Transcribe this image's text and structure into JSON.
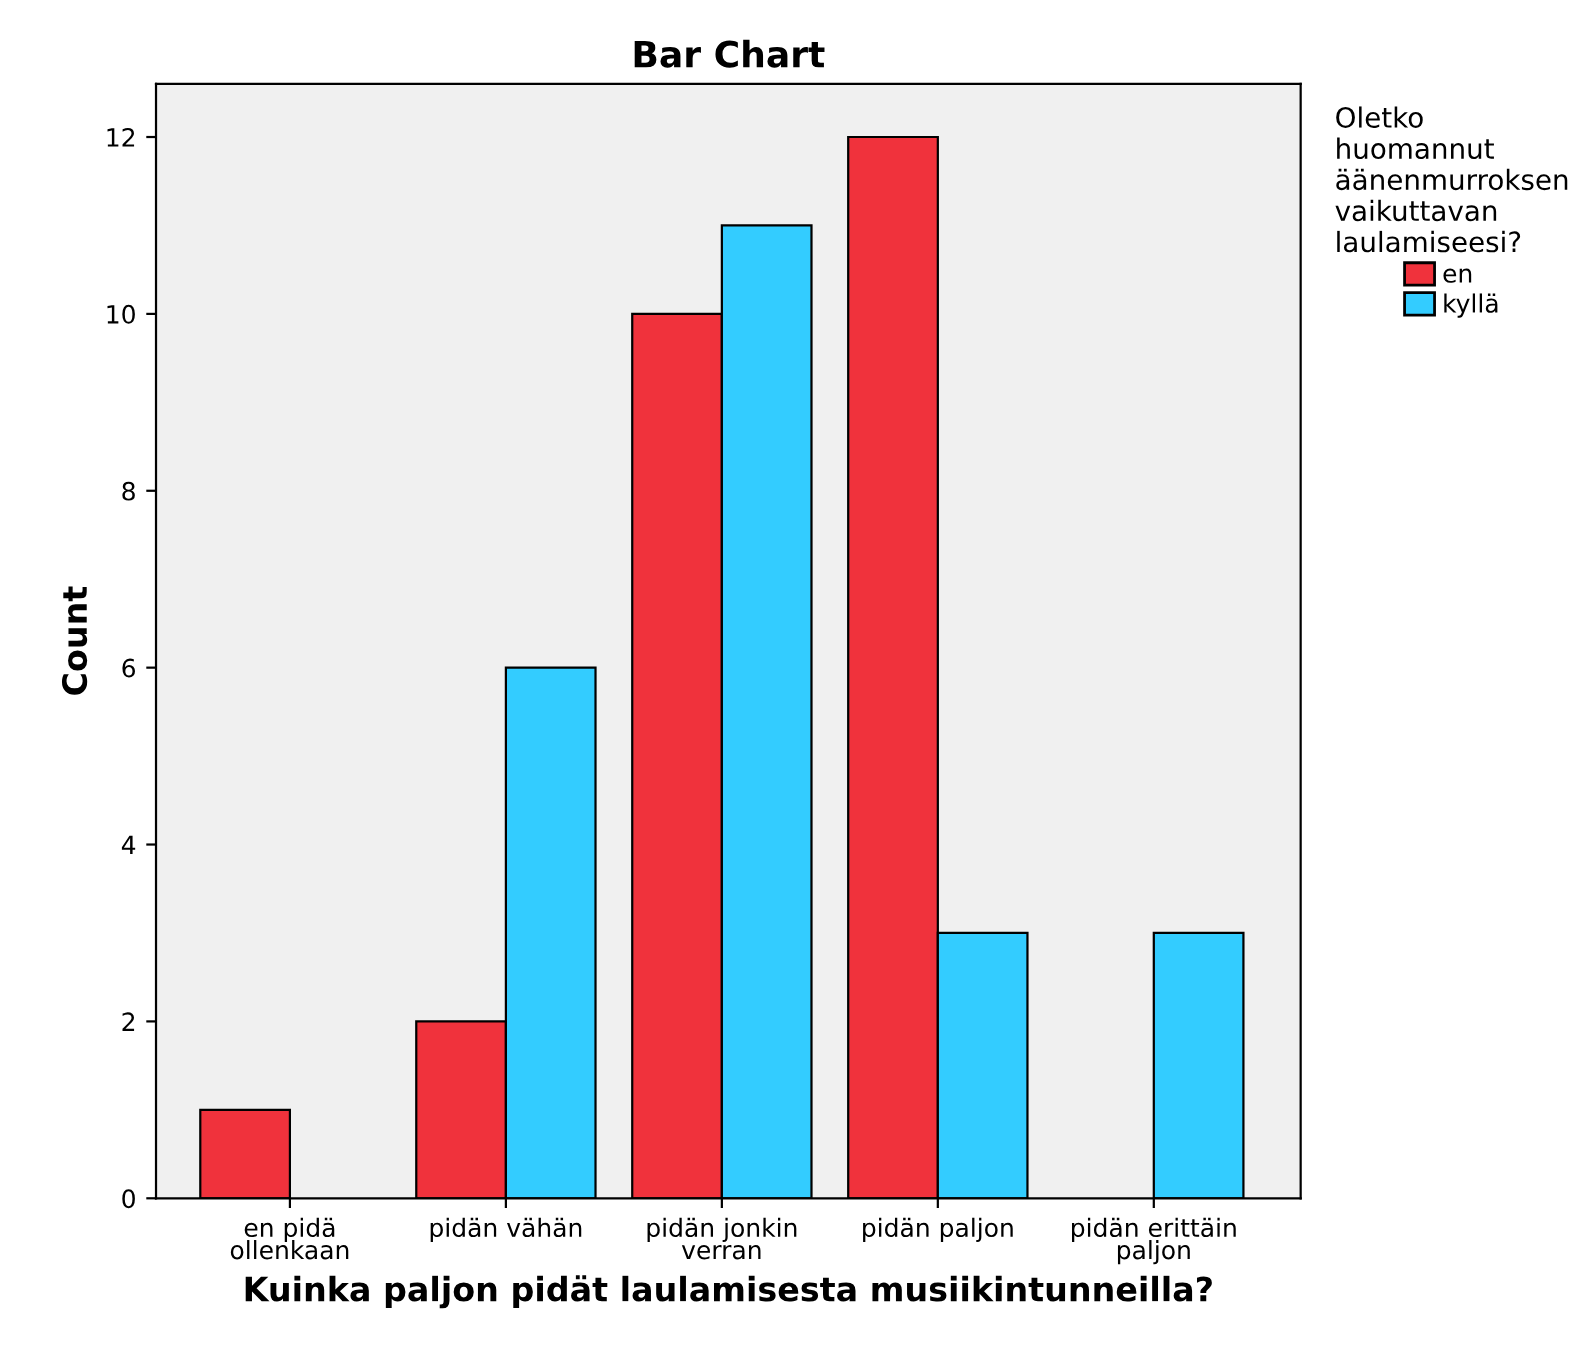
{
  "chart_data": {
    "type": "bar",
    "title": "Bar Chart",
    "xlabel": "Kuinka paljon pidät laulamisesta musiikintunneilla?",
    "ylabel": "Count",
    "legend_title": "Oletko\nhuomannut\näänenmurroksen\nvaikuttavan\nlaulamiseesi?",
    "categories": [
      "en pidä\nollenkaan",
      "pidän vähän",
      "pidän jonkin\nverran",
      "pidän paljon",
      "pidän erittäin\npaljon"
    ],
    "series": [
      {
        "name": "en",
        "color": "#f0323c",
        "values": [
          1,
          2,
          10,
          12,
          null
        ]
      },
      {
        "name": "kyllä",
        "color": "#33ccff",
        "values": [
          null,
          6,
          11,
          3,
          3
        ]
      }
    ],
    "ylim": [
      0,
      12.6
    ],
    "yticks": [
      0,
      2,
      4,
      6,
      8,
      10,
      12
    ],
    "grid": false,
    "legend": "right"
  }
}
